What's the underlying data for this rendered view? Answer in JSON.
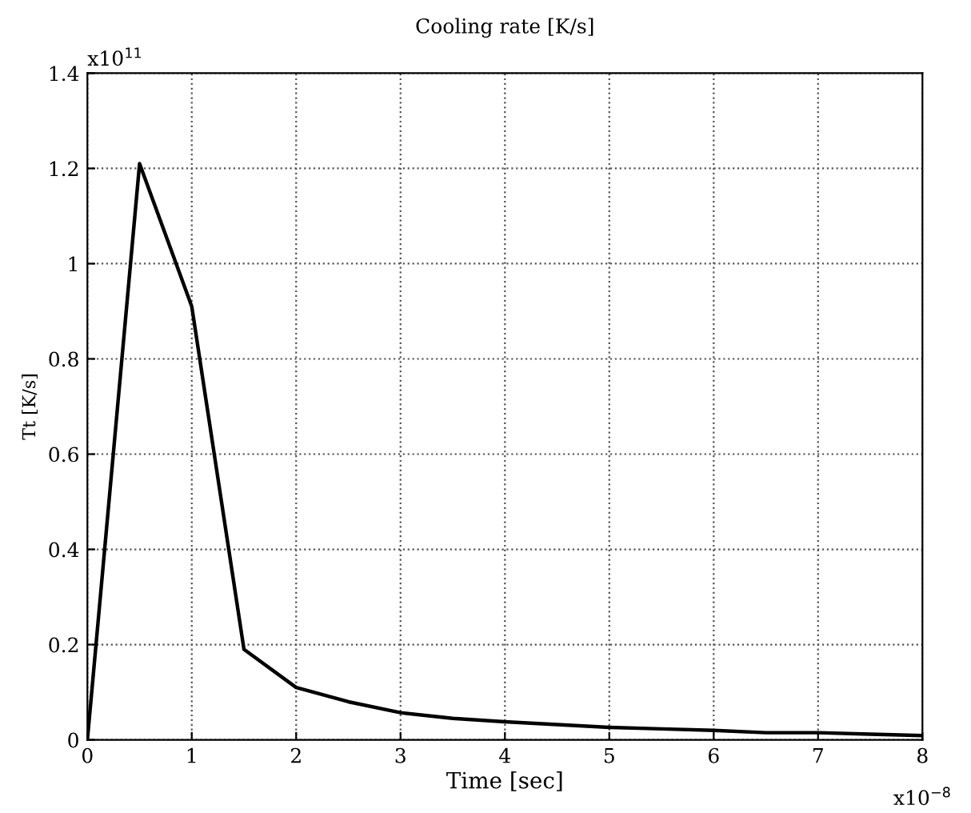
{
  "chart_data": {
    "type": "line",
    "title": "Cooling rate [K/s]",
    "xlabel": "Time [sec]",
    "ylabel": "Tt [K/s]",
    "x": [
      0,
      0.5,
      1,
      1.5,
      2,
      2.5,
      3,
      3.5,
      4,
      4.5,
      5,
      5.5,
      6,
      6.5,
      7,
      7.5,
      8
    ],
    "series": [
      {
        "color": "#000000",
        "values": [
          0,
          1.21,
          0.91,
          0.19,
          0.11,
          0.08,
          0.057,
          0.045,
          0.038,
          0.032,
          0.026,
          0.023,
          0.02,
          0.015,
          0.015,
          0.012,
          0.009
        ]
      }
    ],
    "xlim": [
      0,
      8
    ],
    "xticks": [
      0,
      1,
      2,
      3,
      4,
      5,
      6,
      7,
      8
    ],
    "ylim": [
      0,
      1.4
    ],
    "yticks": [
      0,
      0.2,
      0.4,
      0.6,
      0.8,
      1,
      1.2,
      1.4
    ],
    "grid": true,
    "line_style": "solid",
    "marker": "none",
    "annotations": [
      "x10$^{11}$",
      "x10$^{−8}$"
    ]
  }
}
